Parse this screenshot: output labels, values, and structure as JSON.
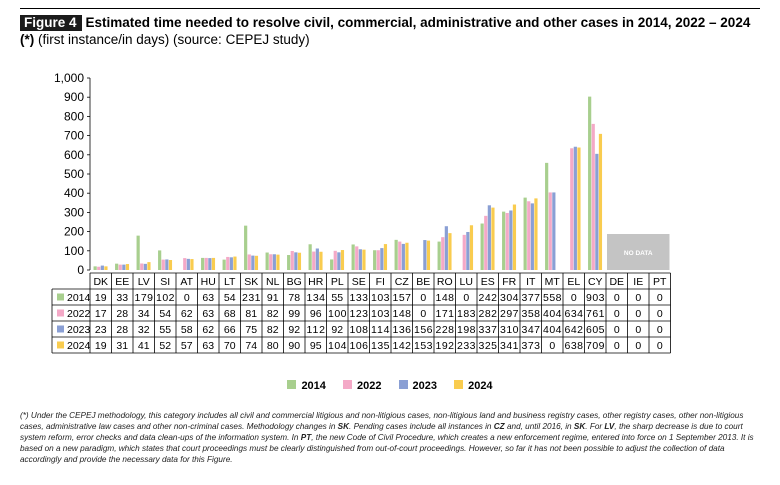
{
  "figure": {
    "label": "Figure 4",
    "title_bold": "Estimated time needed to resolve civil, commercial, administrative and other cases in 2014, 2022 – 2024 (*)",
    "title_normal": " (first instance/in days) (source: CEPEJ study)"
  },
  "colors": {
    "2014": "#a8cf8e",
    "2022": "#f4a9c7",
    "2023": "#8a9fd4",
    "2024": "#f9cc4f",
    "no_data_box": "#c4c4c4"
  },
  "no_data_label": "NO DATA",
  "chart_data": {
    "type": "bar",
    "categories": [
      "DK",
      "EE",
      "LV",
      "SI",
      "AT",
      "HU",
      "LT",
      "SK",
      "NL",
      "BG",
      "HR",
      "PL",
      "SE",
      "FI",
      "CZ",
      "BE",
      "RO",
      "LU",
      "ES",
      "FR",
      "IT",
      "MT",
      "EL",
      "CY",
      "DE",
      "IE",
      "PT"
    ],
    "series": [
      {
        "name": "2014",
        "values": [
          19,
          33,
          179,
          102,
          0,
          63,
          54,
          231,
          91,
          78,
          134,
          55,
          133,
          103,
          157,
          0,
          148,
          0,
          242,
          304,
          377,
          558,
          0,
          903,
          0,
          0,
          0
        ]
      },
      {
        "name": "2022",
        "values": [
          17,
          28,
          34,
          54,
          62,
          63,
          68,
          81,
          82,
          99,
          96,
          100,
          123,
          103,
          148,
          0,
          171,
          183,
          282,
          297,
          358,
          404,
          634,
          761,
          0,
          0,
          0
        ]
      },
      {
        "name": "2023",
        "values": [
          23,
          28,
          32,
          55,
          58,
          62,
          66,
          75,
          82,
          92,
          112,
          92,
          108,
          114,
          136,
          156,
          228,
          198,
          337,
          310,
          347,
          404,
          642,
          605,
          0,
          0,
          0
        ]
      },
      {
        "name": "2024",
        "values": [
          19,
          31,
          41,
          52,
          57,
          63,
          70,
          74,
          80,
          90,
          95,
          104,
          106,
          135,
          142,
          153,
          192,
          233,
          325,
          341,
          373,
          0,
          638,
          709,
          0,
          0,
          0
        ]
      }
    ],
    "y_ticks": [
      "0",
      "100",
      "200",
      "300",
      "400",
      "500",
      "600",
      "700",
      "800",
      "900",
      "1,000"
    ],
    "ylim": [
      0,
      1000
    ],
    "no_data_categories": [
      "DE",
      "IE",
      "PT"
    ],
    "legend": [
      "2014",
      "2022",
      "2023",
      "2024"
    ],
    "legend_position": "bottom",
    "grid": false
  },
  "footnote": {
    "p1": "(*) Under the CEPEJ methodology, this category includes all civil and commercial litigious and non-litigious cases, non-litigious land and business registry cases, other registry cases, other non-litigious cases, administrative law cases and other non-criminal cases. Methodology changes in ",
    "sk1": "SK",
    "p2": ". Pending cases include all instances in ",
    "cz": "CZ",
    "p3": " and, until 2016, in ",
    "sk2": "SK",
    "p4": ". For ",
    "lv": "LV",
    "p5": ", the sharp decrease is due to court system reform, error checks and data clean-ups of the information system. In ",
    "pt": "PT",
    "p6": ", the new Code of Civil Procedure, which creates a new enforcement regime, entered into force on 1 September 2013. It is based on a new paradigm, which states that court proceedings must be clearly distinguished from out-of-court proceedings. However, so far it has not been possible to adjust the collection of data accordingly and provide the necessary data for this Figure."
  }
}
